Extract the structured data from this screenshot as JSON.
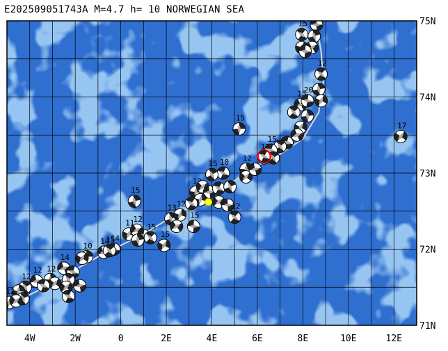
{
  "title": "E202509051743A M=4.7 h= 10 NORWEGIAN SEA",
  "map": {
    "lon_min": -5,
    "lon_max": 13,
    "lat_min": 71,
    "lat_max": 75,
    "ocean_color": "#2f6fd0",
    "shelf_color": "#4f8ee3",
    "ridge_color": "#d8d8d8",
    "lon_ticks": [
      {
        "value": -4,
        "label": "4W"
      },
      {
        "value": -2,
        "label": "2W"
      },
      {
        "value": 0,
        "label": "0"
      },
      {
        "value": 2,
        "label": "2E"
      },
      {
        "value": 4,
        "label": "4E"
      },
      {
        "value": 6,
        "label": "6E"
      },
      {
        "value": 8,
        "label": "8E"
      },
      {
        "value": 10,
        "label": "10E"
      },
      {
        "value": 12,
        "label": "12E"
      }
    ],
    "lat_ticks": [
      {
        "value": 71,
        "label": "71N"
      },
      {
        "value": 72,
        "label": "72N"
      },
      {
        "value": 73,
        "label": "73N"
      },
      {
        "value": 74,
        "label": "74N"
      },
      {
        "value": 75,
        "label": "75N"
      }
    ]
  },
  "ridge": [
    [
      -5.0,
      71.25
    ],
    [
      -4.0,
      71.4
    ],
    [
      -3.0,
      71.55
    ],
    [
      -2.0,
      71.73
    ],
    [
      -1.0,
      71.9
    ],
    [
      0.0,
      72.05
    ],
    [
      1.0,
      72.2
    ],
    [
      2.0,
      72.38
    ],
    [
      3.0,
      72.55
    ],
    [
      4.0,
      72.72
    ],
    [
      5.0,
      72.9
    ],
    [
      6.0,
      73.1
    ],
    [
      7.0,
      73.25
    ],
    [
      8.0,
      73.45
    ],
    [
      8.7,
      73.8
    ],
    [
      8.9,
      74.2
    ],
    [
      8.8,
      74.6
    ],
    [
      8.6,
      74.95
    ]
  ],
  "events": [
    {
      "lon": 8.6,
      "lat": 74.95,
      "label": "14"
    },
    {
      "lon": 7.95,
      "lat": 74.82,
      "label": "15"
    },
    {
      "lon": 8.5,
      "lat": 74.8
    },
    {
      "lon": 7.95,
      "lat": 74.65
    },
    {
      "lon": 8.4,
      "lat": 74.65
    },
    {
      "lon": 8.1,
      "lat": 74.6
    },
    {
      "lon": 8.8,
      "lat": 74.3,
      "label": "12"
    },
    {
      "lon": 8.7,
      "lat": 74.1
    },
    {
      "lon": 8.8,
      "lat": 73.95
    },
    {
      "lon": 7.9,
      "lat": 73.9,
      "label": "15"
    },
    {
      "lon": 8.2,
      "lat": 73.95,
      "label": "20"
    },
    {
      "lon": 7.6,
      "lat": 73.8
    },
    {
      "lon": 8.2,
      "lat": 73.75
    },
    {
      "lon": 7.9,
      "lat": 73.6
    },
    {
      "lon": 7.75,
      "lat": 73.5
    },
    {
      "lon": 7.3,
      "lat": 73.4
    },
    {
      "lon": 7.0,
      "lat": 73.35
    },
    {
      "lon": 5.2,
      "lat": 73.58,
      "label": "15"
    },
    {
      "lon": 12.3,
      "lat": 73.48,
      "label": "17"
    },
    {
      "lon": 6.3,
      "lat": 73.2,
      "label": "12"
    },
    {
      "lon": 6.6,
      "lat": 73.3,
      "label": "15"
    },
    {
      "lon": 6.7,
      "lat": 73.2
    },
    {
      "lon": 5.5,
      "lat": 73.05,
      "label": "12"
    },
    {
      "lon": 5.5,
      "lat": 72.95
    },
    {
      "lon": 5.9,
      "lat": 73.05
    },
    {
      "lon": 4.5,
      "lat": 73.0,
      "label": "10"
    },
    {
      "lon": 4.0,
      "lat": 72.98,
      "label": "15"
    },
    {
      "lon": 3.3,
      "lat": 72.75,
      "label": "12"
    },
    {
      "lon": 3.6,
      "lat": 72.82
    },
    {
      "lon": 3.9,
      "lat": 72.75
    },
    {
      "lon": 4.3,
      "lat": 72.8
    },
    {
      "lon": 4.8,
      "lat": 72.82
    },
    {
      "lon": 3.5,
      "lat": 72.65
    },
    {
      "lon": 4.3,
      "lat": 72.62
    },
    {
      "lon": 4.7,
      "lat": 72.58
    },
    {
      "lon": 3.1,
      "lat": 72.6
    },
    {
      "lon": 2.2,
      "lat": 72.4,
      "label": "13"
    },
    {
      "lon": 2.6,
      "lat": 72.45,
      "label": "12"
    },
    {
      "lon": 2.45,
      "lat": 72.3
    },
    {
      "lon": 3.2,
      "lat": 72.3,
      "label": "15"
    },
    {
      "lon": 5.0,
      "lat": 72.42,
      "label": "12"
    },
    {
      "lon": 0.6,
      "lat": 72.63,
      "label": "15"
    },
    {
      "lon": 0.35,
      "lat": 72.2,
      "label": "11"
    },
    {
      "lon": 0.7,
      "lat": 72.25,
      "label": "12"
    },
    {
      "lon": 1.0,
      "lat": 72.18
    },
    {
      "lon": 1.3,
      "lat": 72.15,
      "label": "15"
    },
    {
      "lon": 0.75,
      "lat": 72.12
    },
    {
      "lon": 1.9,
      "lat": 72.05,
      "label": "15"
    },
    {
      "lon": -0.75,
      "lat": 71.96,
      "label": "14"
    },
    {
      "lon": -0.3,
      "lat": 72.0,
      "label": "14"
    },
    {
      "lon": -0.5,
      "lat": 71.98,
      "label": "15"
    },
    {
      "lon": -1.5,
      "lat": 71.9,
      "label": "10"
    },
    {
      "lon": -1.7,
      "lat": 71.88
    },
    {
      "lon": -2.5,
      "lat": 71.75,
      "label": "14"
    },
    {
      "lon": -2.1,
      "lat": 71.7
    },
    {
      "lon": -2.3,
      "lat": 71.6
    },
    {
      "lon": -3.1,
      "lat": 71.6,
      "label": "12"
    },
    {
      "lon": -2.9,
      "lat": 71.55
    },
    {
      "lon": -3.7,
      "lat": 71.58,
      "label": "12"
    },
    {
      "lon": -3.4,
      "lat": 71.52
    },
    {
      "lon": -4.2,
      "lat": 71.5,
      "label": "12"
    },
    {
      "lon": -4.5,
      "lat": 71.45
    },
    {
      "lon": -2.4,
      "lat": 71.5
    },
    {
      "lon": -1.8,
      "lat": 71.52
    },
    {
      "lon": -2.3,
      "lat": 71.38
    },
    {
      "lon": -4.3,
      "lat": 71.35
    },
    {
      "lon": -4.9,
      "lat": 71.3,
      "label": "12"
    },
    {
      "lon": -4.6,
      "lat": 71.32
    }
  ],
  "main_event": {
    "lon": 6.3,
    "lat": 73.22,
    "color": "#ff0000"
  },
  "epicenter": {
    "lon": 3.85,
    "lat": 72.62,
    "color": "#ffff00"
  }
}
